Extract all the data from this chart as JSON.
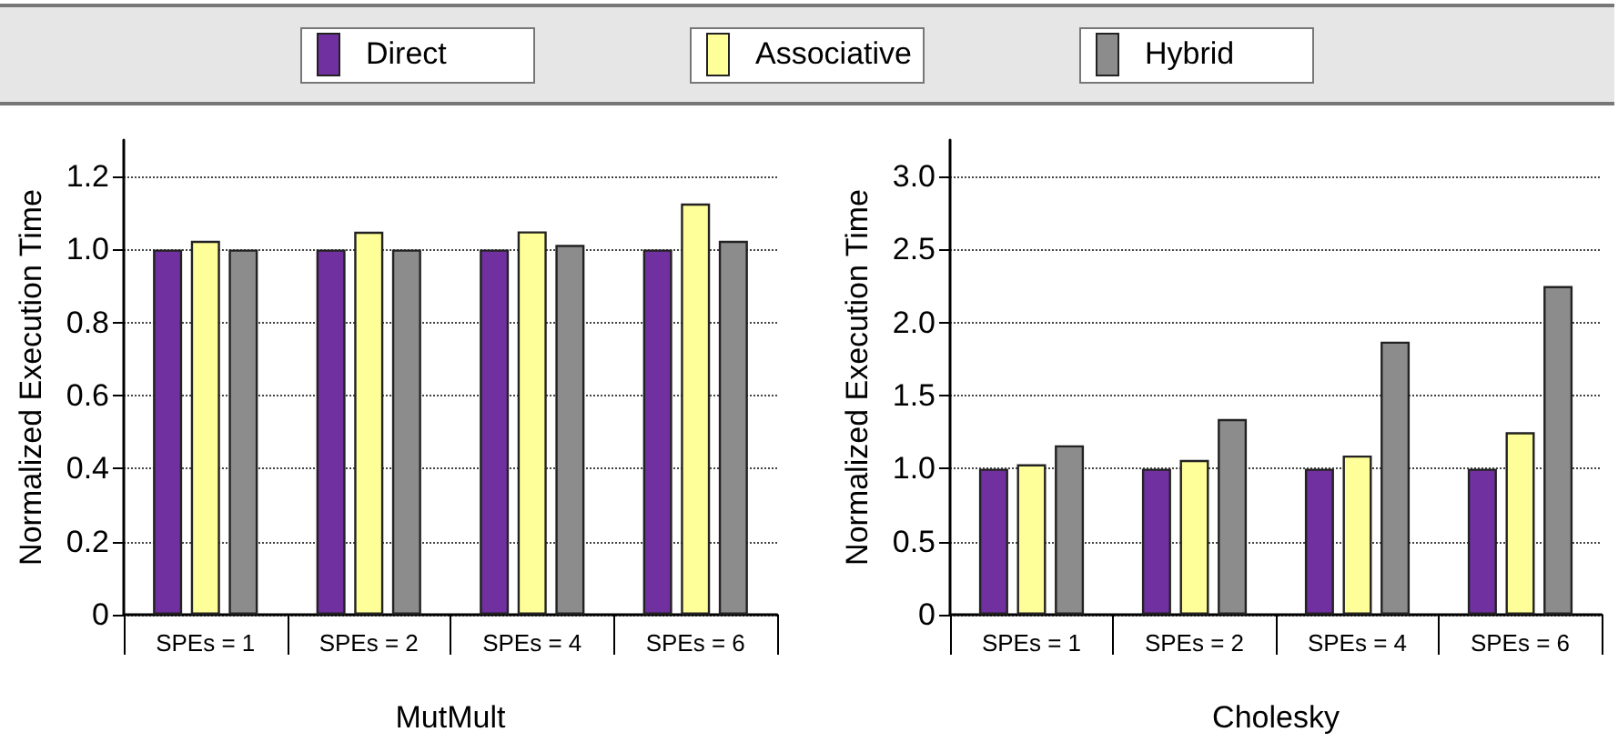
{
  "chart_data": [
    {
      "type": "bar",
      "xlabel": "MutMult",
      "ylabel": "Normalized Execution Time",
      "categories": [
        "SPEs = 1",
        "SPEs = 2",
        "SPEs = 4",
        "SPEs = 6"
      ],
      "series": [
        {
          "name": "Direct",
          "color": "#7030a0",
          "values": [
            1.0,
            1.0,
            1.0,
            1.0
          ]
        },
        {
          "name": "Associative",
          "color": "#ffff99",
          "values": [
            1.024,
            1.049,
            1.05,
            1.126
          ]
        },
        {
          "name": "Hybrid",
          "color": "#8c8c8c",
          "values": [
            1.0,
            1.0,
            1.013,
            1.024
          ]
        }
      ],
      "ylim": [
        0,
        1.3
      ],
      "yticks": [
        0,
        0.2,
        0.4,
        0.6,
        0.8,
        {
          "value": 1,
          "label": "1.0"
        },
        1.2
      ],
      "grid": "y",
      "legend": "top"
    },
    {
      "type": "bar",
      "xlabel": "Cholesky",
      "ylabel": "Normalized Execution Time",
      "categories": [
        "SPEs = 1",
        "SPEs = 2",
        "SPEs = 4",
        "SPEs = 6"
      ],
      "series": [
        {
          "color": "#7030a0",
          "values": [
            1.0,
            1.0,
            1.0,
            1.0
          ]
        },
        {
          "color": "#ffff99",
          "values": [
            1.03,
            1.06,
            1.09,
            1.25
          ]
        },
        {
          "color": "#8c8c8c",
          "values": [
            1.16,
            1.34,
            1.87,
            2.25
          ]
        }
      ],
      "ylim": [
        0,
        3.25
      ],
      "yticks": [
        0,
        0.5,
        {
          "value": 1,
          "label": "1.0"
        },
        1.5,
        {
          "value": 2,
          "label": "2.0"
        },
        2.5,
        {
          "value": 3,
          "label": "3.0"
        }
      ],
      "grid": "y"
    }
  ]
}
